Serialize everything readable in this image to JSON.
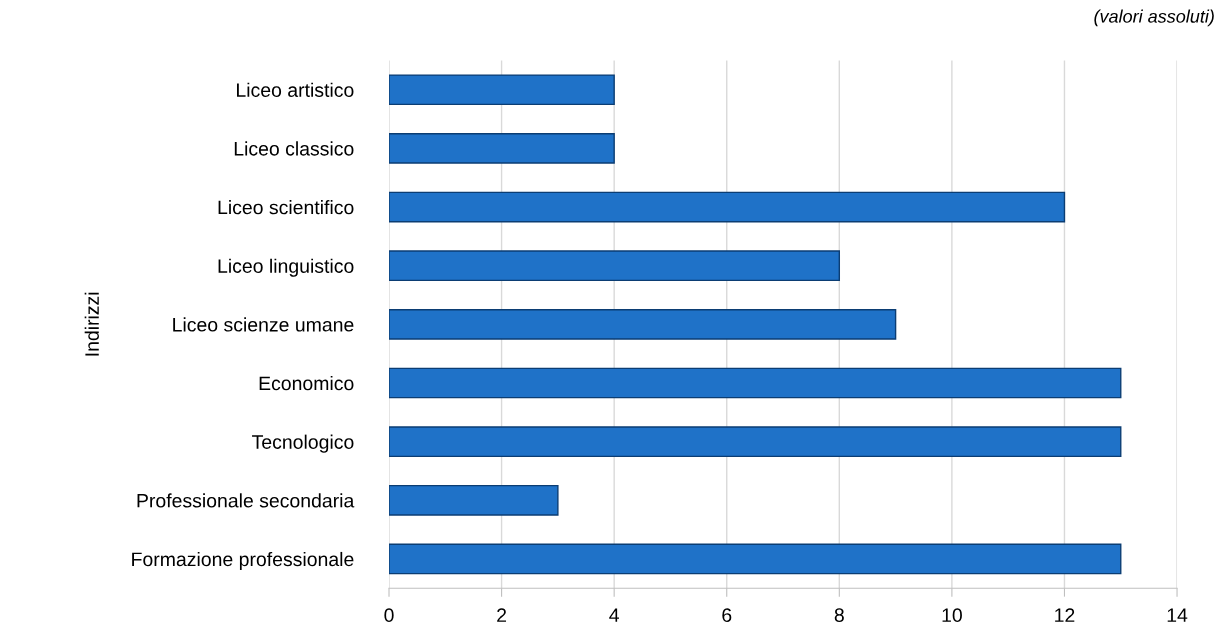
{
  "chart_data": {
    "type": "bar",
    "orientation": "horizontal",
    "ylabel": "Indirizzi",
    "annotations": [
      "(valori assoluti)"
    ],
    "categories": [
      "Liceo artistico",
      "Liceo classico",
      "Liceo scientifico",
      "Liceo linguistico",
      "Liceo scienze umane",
      "Economico",
      "Tecnologico",
      "Professionale secondaria",
      "Formazione professionale"
    ],
    "values": [
      4,
      4,
      12,
      8,
      9,
      13,
      13,
      3,
      13
    ],
    "color": "#1f72c8",
    "xlim": [
      0,
      14
    ],
    "xticks": [
      0,
      2,
      4,
      6,
      8,
      10,
      12,
      14
    ],
    "grid": "x",
    "legend": false
  }
}
